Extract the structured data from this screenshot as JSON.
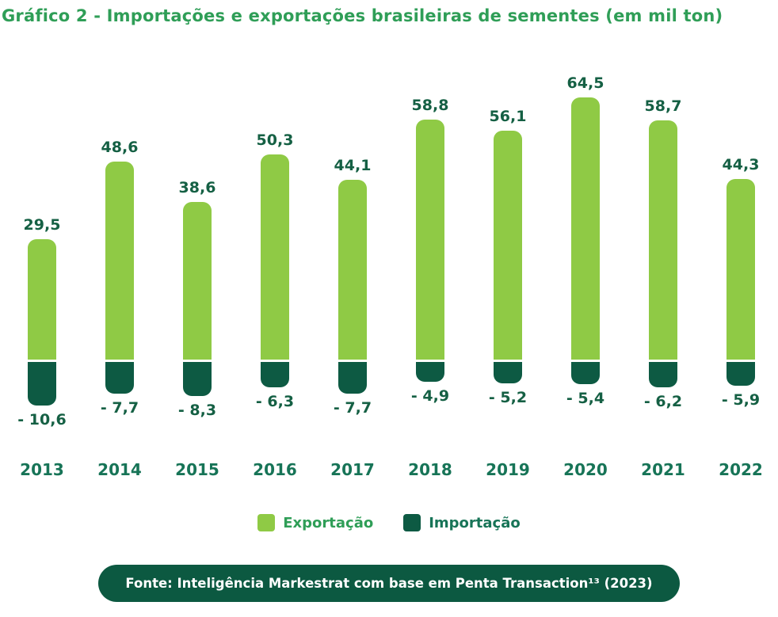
{
  "title": "Gráfico 2 - Importações e exportações brasileiras de sementes (em mil ton)",
  "chart_data": {
    "type": "bar",
    "title": "Gráfico 2 - Importações e exportações brasileiras de sementes (em mil ton)",
    "xlabel": "",
    "ylabel": "mil ton",
    "ylim": [
      -12,
      70
    ],
    "grid": false,
    "legend_position": "bottom",
    "categories": [
      "2013",
      "2014",
      "2015",
      "2016",
      "2017",
      "2018",
      "2019",
      "2020",
      "2021",
      "2022"
    ],
    "series": [
      {
        "name": "Exportação",
        "color": "#8fca45",
        "values": [
          29.5,
          48.6,
          38.6,
          50.3,
          44.1,
          58.8,
          56.1,
          64.5,
          58.7,
          44.3
        ],
        "labels": [
          "29,5",
          "48,6",
          "38,6",
          "50,3",
          "44,1",
          "58,8",
          "56,1",
          "64,5",
          "58,7",
          "44,3"
        ]
      },
      {
        "name": "Importação",
        "color": "#0d5a43",
        "values": [
          -10.6,
          -7.7,
          -8.3,
          -6.3,
          -7.7,
          -4.9,
          -5.2,
          -5.4,
          -6.2,
          -5.9
        ],
        "labels": [
          "- 10,6",
          "- 7,7",
          "- 8,3",
          "- 6,3",
          "- 7,7",
          "- 4,9",
          "- 5,2",
          "- 5,4",
          "- 6,2",
          "- 5,9"
        ]
      }
    ]
  },
  "legend": {
    "items": [
      {
        "label": "Exportação",
        "color": "#8fca45"
      },
      {
        "label": "Importação",
        "color": "#0d5a43"
      }
    ]
  },
  "footer": {
    "text": "Fonte: Inteligência Markestrat com base em Penta Transaction¹³ (2023)"
  }
}
